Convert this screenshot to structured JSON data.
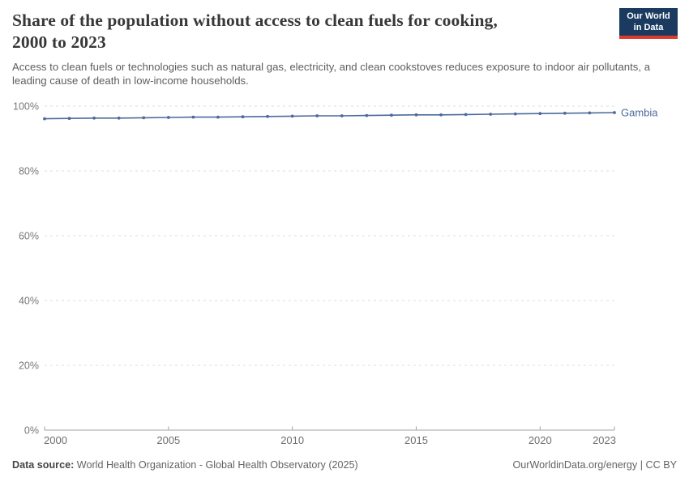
{
  "header": {
    "title_line1": "Share of the population without access to clean fuels for cooking,",
    "title_line2": "2000 to 2023",
    "subtitle": "Access to clean fuels or technologies such as natural gas, electricity, and clean cookstoves reduces exposure to indoor air pollutants, a leading cause of death in low-income households.",
    "logo": {
      "line1": "Our World",
      "line2": "in Data",
      "bg_color": "#1a3a5f",
      "accent_color": "#dc3b2e"
    }
  },
  "chart_data": {
    "type": "line",
    "title": "Share of the population without access to clean fuels for cooking, 2000 to 2023",
    "x": [
      2000,
      2001,
      2002,
      2003,
      2004,
      2005,
      2006,
      2007,
      2008,
      2009,
      2010,
      2011,
      2012,
      2013,
      2014,
      2015,
      2016,
      2017,
      2018,
      2019,
      2020,
      2021,
      2022,
      2023
    ],
    "series": [
      {
        "name": "Gambia",
        "color": "#4c6a9c",
        "values": [
          96.1,
          96.2,
          96.3,
          96.3,
          96.4,
          96.5,
          96.6,
          96.6,
          96.7,
          96.8,
          96.9,
          97.0,
          97.0,
          97.1,
          97.2,
          97.3,
          97.3,
          97.4,
          97.5,
          97.6,
          97.7,
          97.8,
          97.9,
          98.0
        ]
      }
    ],
    "xlabel": "",
    "ylabel": "",
    "ylim": [
      0,
      100
    ],
    "yticks": [
      0,
      20,
      40,
      60,
      80,
      100
    ],
    "ytick_labels": [
      "0%",
      "20%",
      "40%",
      "60%",
      "80%",
      "100%"
    ],
    "xticks": [
      2000,
      2005,
      2010,
      2015,
      2020,
      2023
    ],
    "grid": "horizontal-dashed",
    "legend_position": "end-of-line-label",
    "axis_color": "#a3a3a3",
    "grid_color": "#dcdcdc",
    "tick_label_color": "#787878"
  },
  "footer": {
    "source_label": "Data source:",
    "source_text": "World Health Organization - Global Health Observatory (2025)",
    "credit": "OurWorldinData.org/energy | CC BY"
  }
}
